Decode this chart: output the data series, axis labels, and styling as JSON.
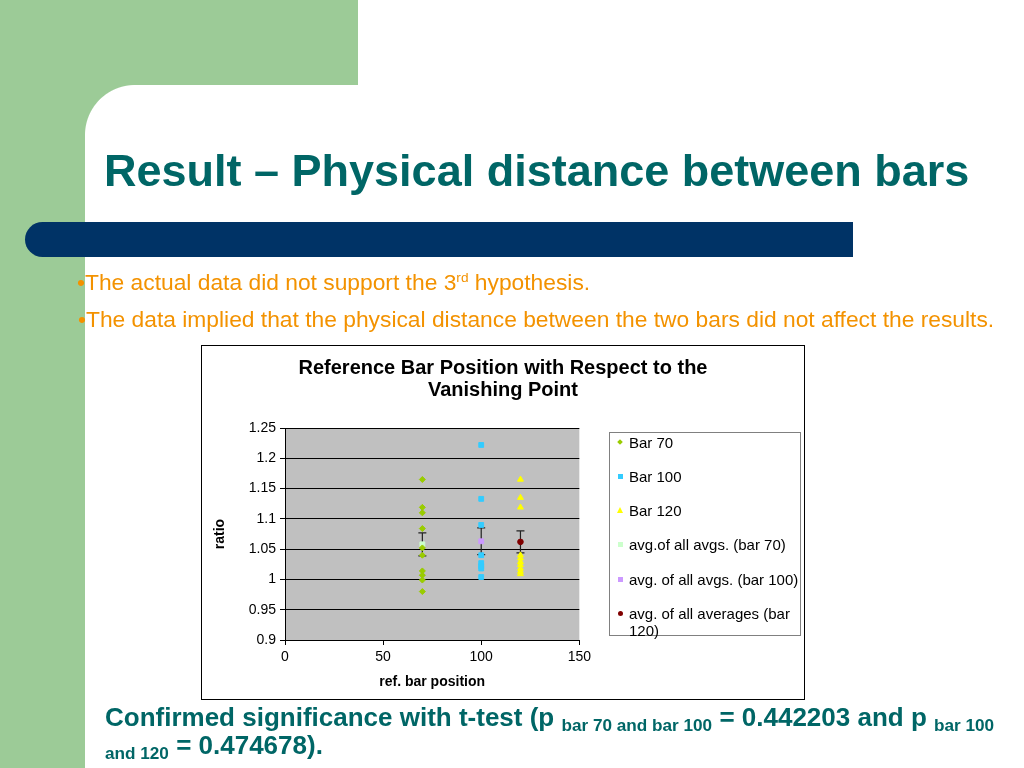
{
  "chart_data": {
    "type": "scatter",
    "title": "Reference Bar Position with Respect to the Vanishing Point",
    "xlabel": "ref. bar position",
    "ylabel": "ratio",
    "annotations": [
      "Result – Physical distance between bars",
      "•The actual data did not support the 3$^{rd}$ hypothesis.",
      "•The data implied that the physical distance between the two bars did not affect the results.",
      "Confirmed significance with t-test (p $_{bar 70 and bar 100}$ = 0.442203 and p $_{bar 100 and 120}$ = 0.474678)."
    ],
    "xlim": [
      0,
      150
    ],
    "xticks": [
      0,
      50,
      100,
      150
    ],
    "ylim": [
      0.9,
      1.25
    ],
    "yticks": [
      0.9,
      0.95,
      1,
      1.05,
      1.1,
      1.15,
      1.2,
      1.25
    ],
    "grid": "y",
    "legend": "right",
    "series": [
      {
        "name": "Bar 70",
        "color": "#99cc00",
        "marker": "diamond",
        "x": [
          70,
          70,
          70,
          70,
          70,
          70,
          70,
          70,
          70,
          70
        ],
        "values": [
          1.165,
          1.119,
          1.11,
          1.084,
          1.052,
          1.04,
          1.014,
          1.007,
          0.999,
          0.98
        ]
      },
      {
        "name": "Bar 100",
        "color": "#33ccff",
        "marker": "square",
        "x": [
          100,
          100,
          100,
          100,
          100,
          100,
          100,
          100
        ],
        "values": [
          1.222,
          1.133,
          1.09,
          1.04,
          1.027,
          1.022,
          1.018,
          1.004
        ]
      },
      {
        "name": "Bar 120",
        "color": "#ffff00",
        "marker": "triangle",
        "x": [
          120,
          120,
          120,
          120,
          120,
          120,
          120,
          120,
          120,
          120
        ],
        "values": [
          1.165,
          1.135,
          1.119,
          1.04,
          1.035,
          1.029,
          1.024,
          1.018,
          1.013,
          1.009
        ]
      },
      {
        "name": "avg.of all avgs. (bar 70)",
        "color": "#ccffcc",
        "marker": "square",
        "x": [
          70
        ],
        "values": [
          1.058
        ],
        "errors": [
          0.019
        ]
      },
      {
        "name": "avg. of all avgs. (bar 100)",
        "color": "#cc99ff",
        "marker": "square",
        "x": [
          100
        ],
        "values": [
          1.063
        ],
        "errors": [
          0.022
        ]
      },
      {
        "name": "avg. of all averages (bar 120)",
        "color": "#800000",
        "marker": "circle",
        "x": [
          120
        ],
        "values": [
          1.062
        ],
        "errors": [
          0.018
        ]
      }
    ]
  }
}
